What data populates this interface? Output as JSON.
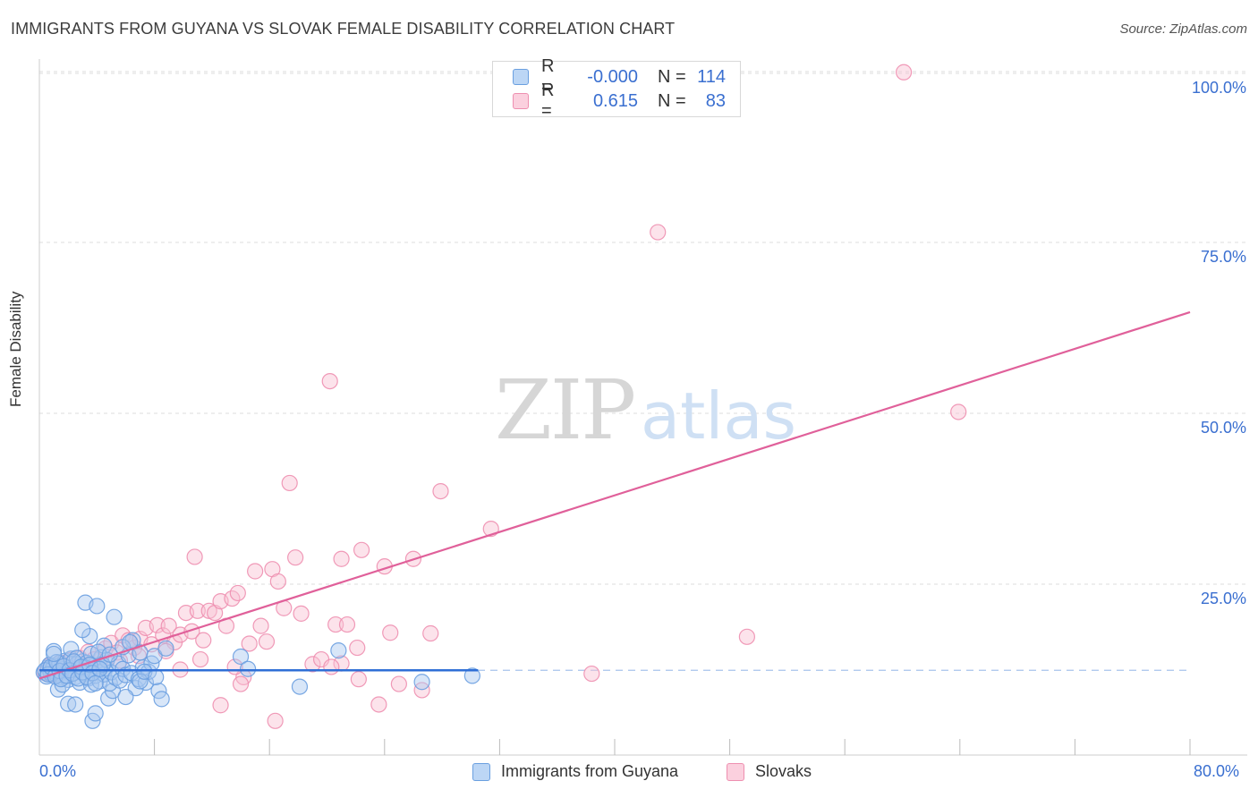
{
  "header": {
    "title": "IMMIGRANTS FROM GUYANA VS SLOVAK FEMALE DISABILITY CORRELATION CHART",
    "source": "Source: ZipAtlas.com"
  },
  "watermark": {
    "zip": "ZIP",
    "atlas": "atlas"
  },
  "colors": {
    "blue_fill": "#a8c8f0",
    "blue_stroke": "#6a9fe0",
    "blue_line": "#2f6fd6",
    "pink_fill": "#f8c0d2",
    "pink_stroke": "#ee8fb0",
    "pink_line": "#e0609a",
    "tick_text": "#3a6fd0",
    "grid": "#dddddd"
  },
  "legend_top": {
    "rows": [
      {
        "r_label": "R =",
        "r_value": "-0.000",
        "n_label": "N =",
        "n_value": "114"
      },
      {
        "r_label": "R =",
        "r_value": "0.615",
        "n_label": "N =",
        "n_value": "83"
      }
    ]
  },
  "legend_bottom": {
    "items": [
      "Immigrants from Guyana",
      "Slovaks"
    ]
  },
  "x_axis": {
    "min_label": "0.0%",
    "max_label": "80.0%"
  },
  "chart_data": {
    "type": "scatter",
    "title": "IMMIGRANTS FROM GUYANA VS SLOVAK FEMALE DISABILITY CORRELATION CHART",
    "xlabel": "",
    "ylabel": "Female Disability",
    "xlim": [
      0,
      80
    ],
    "ylim": [
      0,
      102
    ],
    "y_ticks": [
      {
        "value": 25,
        "label": "25.0%"
      },
      {
        "value": 50,
        "label": "50.0%"
      },
      {
        "value": 75,
        "label": "75.0%"
      },
      {
        "value": 100,
        "label": "100.0%"
      }
    ],
    "x_ticks": [
      8,
      16,
      24,
      32,
      40,
      48,
      56,
      64,
      72,
      80
    ],
    "mean_line_y": 12.4,
    "series": [
      {
        "name": "Immigrants from Guyana",
        "color": "blue",
        "trend": {
          "x0": 0,
          "y0": 12.4,
          "x1": 30.5,
          "y1": 12.4
        },
        "points": [
          [
            0.3,
            12.1
          ],
          [
            0.5,
            11.5
          ],
          [
            0.6,
            12.8
          ],
          [
            0.7,
            13.2
          ],
          [
            0.8,
            11.9
          ],
          [
            0.9,
            12.5
          ],
          [
            1.0,
            13.0
          ],
          [
            1.1,
            12.2
          ],
          [
            1.2,
            11.7
          ],
          [
            1.3,
            12.9
          ],
          [
            1.0,
            15.2
          ],
          [
            1.4,
            13.5
          ],
          [
            1.5,
            12.0
          ],
          [
            1.6,
            11.3
          ],
          [
            1.7,
            12.6
          ],
          [
            1.8,
            13.8
          ],
          [
            1.9,
            12.3
          ],
          [
            2.0,
            11.0
          ],
          [
            2.1,
            12.7
          ],
          [
            2.2,
            14.1
          ],
          [
            1.3,
            9.6
          ],
          [
            1.6,
            10.3
          ],
          [
            2.4,
            12.0
          ],
          [
            2.5,
            11.4
          ],
          [
            2.6,
            13.3
          ],
          [
            2.7,
            12.5
          ],
          [
            2.8,
            10.6
          ],
          [
            3.0,
            13.7
          ],
          [
            3.1,
            11.9
          ],
          [
            3.2,
            12.8
          ],
          [
            2.0,
            7.5
          ],
          [
            2.5,
            7.4
          ],
          [
            3.4,
            11.2
          ],
          [
            3.5,
            12.4
          ],
          [
            3.6,
            10.3
          ],
          [
            3.8,
            13.1
          ],
          [
            3.9,
            11.6
          ],
          [
            4.0,
            12.9
          ],
          [
            4.2,
            10.8
          ],
          [
            4.3,
            14.3
          ],
          [
            3.2,
            22.3
          ],
          [
            3.5,
            17.4
          ],
          [
            4.0,
            21.8
          ],
          [
            3.0,
            18.3
          ],
          [
            5.2,
            20.2
          ],
          [
            4.5,
            16.0
          ],
          [
            3.7,
            5.0
          ],
          [
            3.9,
            6.1
          ],
          [
            4.8,
            8.3
          ],
          [
            5.1,
            9.4
          ],
          [
            4.5,
            11.8
          ],
          [
            4.6,
            12.7
          ],
          [
            4.7,
            13.9
          ],
          [
            4.9,
            10.5
          ],
          [
            5.0,
            12.1
          ],
          [
            5.3,
            11.3
          ],
          [
            5.5,
            13.4
          ],
          [
            5.6,
            10.9
          ],
          [
            5.8,
            12.6
          ],
          [
            6.0,
            11.7
          ],
          [
            6.2,
            14.6
          ],
          [
            6.4,
            12.0
          ],
          [
            6.5,
            16.8
          ],
          [
            6.7,
            9.8
          ],
          [
            6.9,
            11.1
          ],
          [
            7.0,
            15.0
          ],
          [
            7.2,
            12.8
          ],
          [
            7.4,
            10.6
          ],
          [
            7.6,
            12.2
          ],
          [
            7.8,
            13.4
          ],
          [
            8.0,
            14.5
          ],
          [
            8.3,
            9.4
          ],
          [
            8.5,
            8.2
          ],
          [
            8.8,
            15.6
          ],
          [
            2.2,
            15.5
          ],
          [
            2.6,
            14.2
          ],
          [
            3.3,
            13.5
          ],
          [
            3.6,
            14.8
          ],
          [
            4.1,
            15.1
          ],
          [
            4.4,
            13.2
          ],
          [
            0.4,
            12.4
          ],
          [
            0.6,
            11.8
          ],
          [
            0.8,
            12.9
          ],
          [
            1.1,
            11.5
          ],
          [
            1.2,
            13.6
          ],
          [
            1.4,
            12.3
          ],
          [
            1.5,
            11.1
          ],
          [
            1.7,
            13.0
          ],
          [
            1.9,
            11.6
          ],
          [
            2.1,
            12.4
          ],
          [
            2.3,
            11.9
          ],
          [
            2.4,
            13.7
          ],
          [
            2.7,
            11.2
          ],
          [
            2.9,
            12.9
          ],
          [
            3.0,
            12.1
          ],
          [
            3.3,
            11.4
          ],
          [
            3.5,
            13.2
          ],
          [
            3.7,
            12.0
          ],
          [
            3.9,
            10.5
          ],
          [
            4.2,
            12.6
          ],
          [
            6.0,
            8.5
          ],
          [
            7.0,
            10.8
          ],
          [
            7.3,
            12.2
          ],
          [
            8.1,
            11.4
          ],
          [
            5.8,
            15.8
          ],
          [
            6.3,
            16.5
          ],
          [
            4.9,
            14.7
          ],
          [
            14.0,
            14.4
          ],
          [
            14.5,
            12.6
          ],
          [
            18.1,
            10.0
          ],
          [
            20.8,
            15.3
          ],
          [
            26.6,
            10.7
          ],
          [
            30.1,
            11.6
          ],
          [
            1.0,
            14.8
          ]
        ]
      },
      {
        "name": "Slovaks",
        "color": "pink",
        "trend": {
          "x0": 0,
          "y0": 11.2,
          "x1": 80,
          "y1": 64.8
        },
        "points": [
          [
            0.4,
            12.0
          ],
          [
            0.7,
            13.1
          ],
          [
            0.9,
            11.8
          ],
          [
            1.2,
            12.7
          ],
          [
            1.5,
            13.5
          ],
          [
            1.8,
            12.2
          ],
          [
            2.1,
            13.9
          ],
          [
            2.4,
            12.5
          ],
          [
            2.8,
            14.2
          ],
          [
            3.1,
            13.0
          ],
          [
            3.4,
            15.1
          ],
          [
            3.8,
            14.0
          ],
          [
            4.2,
            13.3
          ],
          [
            4.6,
            15.6
          ],
          [
            5.0,
            16.4
          ],
          [
            5.4,
            15.0
          ],
          [
            5.8,
            17.5
          ],
          [
            6.2,
            16.8
          ],
          [
            6.6,
            15.7
          ],
          [
            7.0,
            17.0
          ],
          [
            7.4,
            18.6
          ],
          [
            7.8,
            16.2
          ],
          [
            8.2,
            19.0
          ],
          [
            8.6,
            17.5
          ],
          [
            9.0,
            18.9
          ],
          [
            9.4,
            16.5
          ],
          [
            9.8,
            17.6
          ],
          [
            10.2,
            20.8
          ],
          [
            10.6,
            18.1
          ],
          [
            11.0,
            21.1
          ],
          [
            11.4,
            16.8
          ],
          [
            11.8,
            21.1
          ],
          [
            12.2,
            20.8
          ],
          [
            12.6,
            22.5
          ],
          [
            13.0,
            18.9
          ],
          [
            13.4,
            22.9
          ],
          [
            13.8,
            23.7
          ],
          [
            14.2,
            11.4
          ],
          [
            14.6,
            16.3
          ],
          [
            15.0,
            26.9
          ],
          [
            15.4,
            18.9
          ],
          [
            15.8,
            16.6
          ],
          [
            16.2,
            27.2
          ],
          [
            16.6,
            25.4
          ],
          [
            17.0,
            21.5
          ],
          [
            17.4,
            39.8
          ],
          [
            17.8,
            28.9
          ],
          [
            18.2,
            20.7
          ],
          [
            19.0,
            13.3
          ],
          [
            19.6,
            14.0
          ],
          [
            20.2,
            54.7
          ],
          [
            20.6,
            19.1
          ],
          [
            21.0,
            28.7
          ],
          [
            21.4,
            19.1
          ],
          [
            22.1,
            15.7
          ],
          [
            22.4,
            30.0
          ],
          [
            23.6,
            7.4
          ],
          [
            24.0,
            27.6
          ],
          [
            24.4,
            17.9
          ],
          [
            25.0,
            10.4
          ],
          [
            26.0,
            28.7
          ],
          [
            26.6,
            9.5
          ],
          [
            27.2,
            17.8
          ],
          [
            27.9,
            38.6
          ],
          [
            31.4,
            33.1
          ],
          [
            38.4,
            11.9
          ],
          [
            43.0,
            76.5
          ],
          [
            49.2,
            17.3
          ],
          [
            60.1,
            99.9
          ],
          [
            63.9,
            50.2
          ],
          [
            12.6,
            7.3
          ],
          [
            16.4,
            5.0
          ],
          [
            14.0,
            10.4
          ],
          [
            22.2,
            11.1
          ],
          [
            21.0,
            13.4
          ],
          [
            13.6,
            12.9
          ],
          [
            11.2,
            14.0
          ],
          [
            9.8,
            12.5
          ],
          [
            8.8,
            15.2
          ],
          [
            6.9,
            14.5
          ],
          [
            5.6,
            13.8
          ],
          [
            10.8,
            29.0
          ],
          [
            20.3,
            12.9
          ]
        ]
      }
    ]
  }
}
